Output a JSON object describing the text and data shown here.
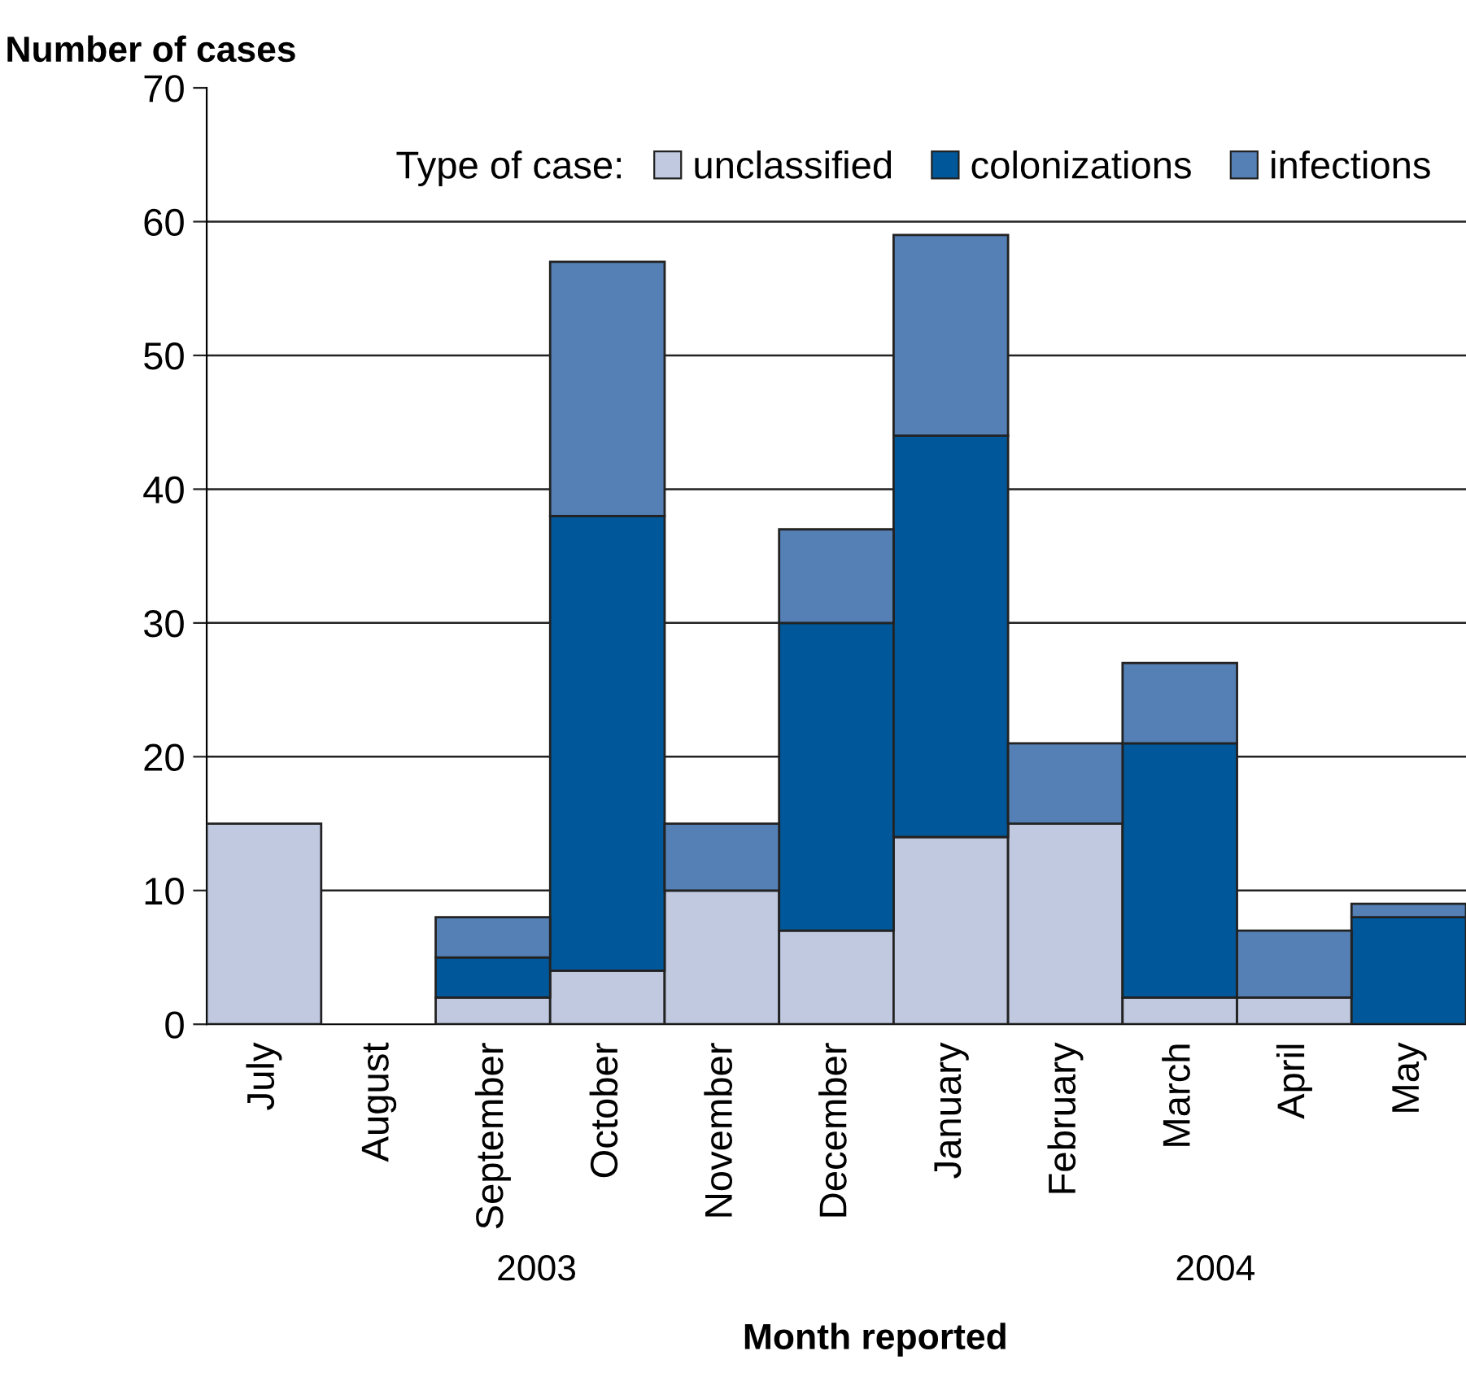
{
  "chart_data": {
    "type": "bar",
    "stacked": true,
    "xlabel": "Month reported",
    "ylabel": "Number of cases",
    "legend_title": "Type of case:",
    "legend": "top right",
    "grid": "y",
    "categories": [
      "July",
      "August",
      "September",
      "October",
      "November",
      "December",
      "January",
      "February",
      "March",
      "April",
      "May"
    ],
    "series": [
      {
        "name": "unclassified",
        "color": "#c0c9e0",
        "values": [
          15,
          0,
          2,
          4,
          10,
          7,
          14,
          15,
          2,
          2,
          0
        ]
      },
      {
        "name": "colonizations",
        "color": "#00589a",
        "values": [
          0,
          0,
          3,
          34,
          0,
          23,
          30,
          0,
          19,
          0,
          8
        ]
      },
      {
        "name": "infections",
        "color": "#5480b5",
        "values": [
          0,
          0,
          3,
          19,
          5,
          7,
          15,
          6,
          6,
          5,
          1
        ]
      }
    ],
    "ylim": [
      0,
      70
    ],
    "yticks": [
      0,
      10,
      20,
      30,
      40,
      50,
      60,
      70
    ],
    "annotations": [
      "2003",
      "2004"
    ]
  }
}
